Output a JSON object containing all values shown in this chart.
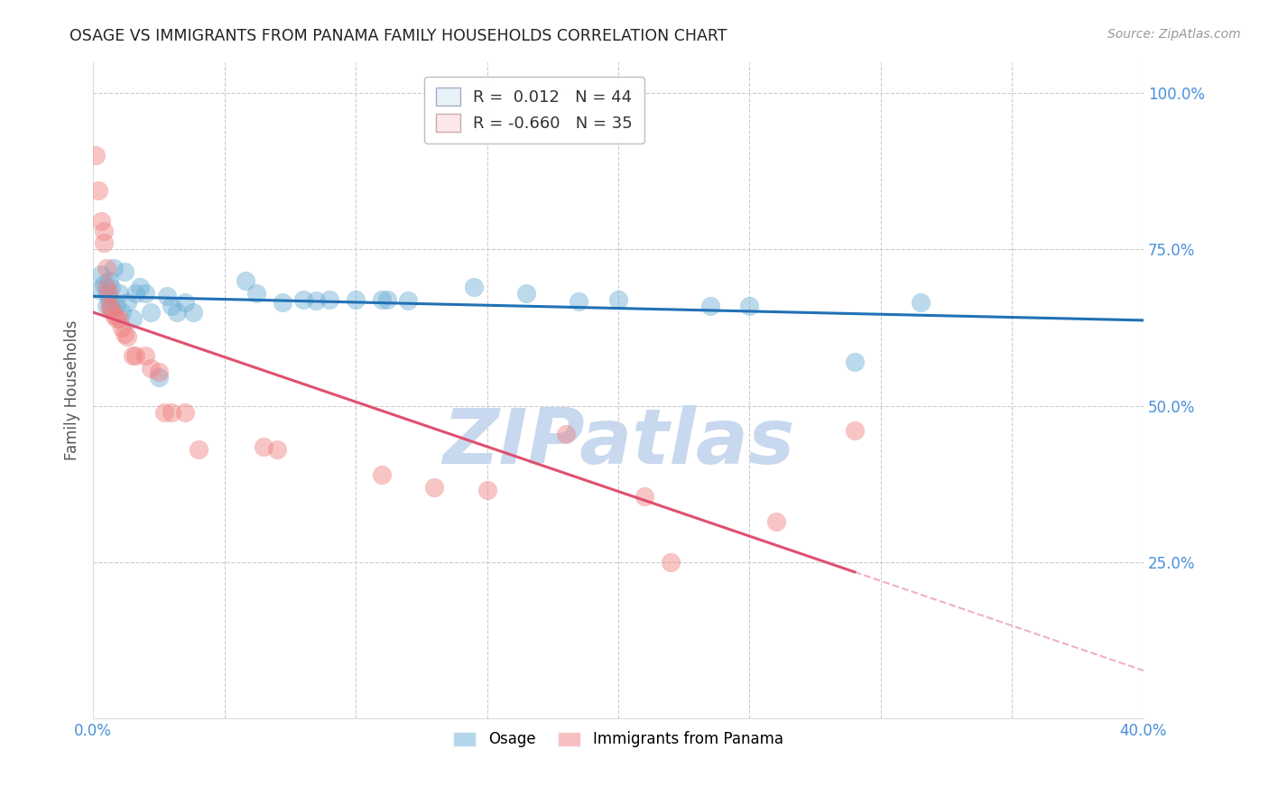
{
  "title": "OSAGE VS IMMIGRANTS FROM PANAMA FAMILY HOUSEHOLDS CORRELATION CHART",
  "source": "Source: ZipAtlas.com",
  "ylabel": "Family Households",
  "xlim": [
    0.0,
    0.4
  ],
  "ylim": [
    0.0,
    1.05
  ],
  "ytick_positions": [
    0.0,
    0.25,
    0.5,
    0.75,
    1.0
  ],
  "ytick_labels_right": [
    "",
    "25.0%",
    "50.0%",
    "75.0%",
    "100.0%"
  ],
  "xtick_positions": [
    0.0,
    0.05,
    0.1,
    0.15,
    0.2,
    0.25,
    0.3,
    0.35,
    0.4
  ],
  "xtick_labels": [
    "0.0%",
    "",
    "",
    "",
    "",
    "",
    "",
    "",
    "40.0%"
  ],
  "osage_R": 0.012,
  "osage_N": 44,
  "panama_R": -0.66,
  "panama_N": 35,
  "osage_color": "#6baed6",
  "panama_color": "#f08080",
  "osage_line_color": "#2171b5",
  "panama_line_color": "#e05070",
  "watermark_text": "ZIPatlas",
  "watermark_color": "#c8d8ee",
  "osage_points": [
    [
      0.002,
      0.685
    ],
    [
      0.003,
      0.71
    ],
    [
      0.004,
      0.695
    ],
    [
      0.005,
      0.68
    ],
    [
      0.005,
      0.66
    ],
    [
      0.006,
      0.7
    ],
    [
      0.006,
      0.67
    ],
    [
      0.007,
      0.69
    ],
    [
      0.007,
      0.655
    ],
    [
      0.008,
      0.72
    ],
    [
      0.009,
      0.66
    ],
    [
      0.01,
      0.68
    ],
    [
      0.011,
      0.65
    ],
    [
      0.012,
      0.715
    ],
    [
      0.013,
      0.665
    ],
    [
      0.015,
      0.64
    ],
    [
      0.016,
      0.68
    ],
    [
      0.018,
      0.69
    ],
    [
      0.02,
      0.68
    ],
    [
      0.022,
      0.65
    ],
    [
      0.025,
      0.545
    ],
    [
      0.028,
      0.675
    ],
    [
      0.03,
      0.66
    ],
    [
      0.032,
      0.65
    ],
    [
      0.035,
      0.665
    ],
    [
      0.038,
      0.65
    ],
    [
      0.058,
      0.7
    ],
    [
      0.062,
      0.68
    ],
    [
      0.072,
      0.665
    ],
    [
      0.08,
      0.67
    ],
    [
      0.085,
      0.668
    ],
    [
      0.09,
      0.67
    ],
    [
      0.1,
      0.67
    ],
    [
      0.11,
      0.67
    ],
    [
      0.112,
      0.67
    ],
    [
      0.12,
      0.668
    ],
    [
      0.145,
      0.69
    ],
    [
      0.165,
      0.68
    ],
    [
      0.185,
      0.667
    ],
    [
      0.2,
      0.67
    ],
    [
      0.235,
      0.66
    ],
    [
      0.25,
      0.66
    ],
    [
      0.29,
      0.57
    ],
    [
      0.315,
      0.665
    ]
  ],
  "panama_points": [
    [
      0.001,
      0.9
    ],
    [
      0.002,
      0.845
    ],
    [
      0.003,
      0.795
    ],
    [
      0.004,
      0.78
    ],
    [
      0.004,
      0.76
    ],
    [
      0.005,
      0.72
    ],
    [
      0.005,
      0.69
    ],
    [
      0.006,
      0.68
    ],
    [
      0.006,
      0.66
    ],
    [
      0.007,
      0.655
    ],
    [
      0.008,
      0.645
    ],
    [
      0.009,
      0.64
    ],
    [
      0.01,
      0.64
    ],
    [
      0.011,
      0.625
    ],
    [
      0.012,
      0.615
    ],
    [
      0.013,
      0.61
    ],
    [
      0.015,
      0.58
    ],
    [
      0.016,
      0.58
    ],
    [
      0.02,
      0.58
    ],
    [
      0.022,
      0.56
    ],
    [
      0.025,
      0.555
    ],
    [
      0.027,
      0.49
    ],
    [
      0.03,
      0.49
    ],
    [
      0.035,
      0.49
    ],
    [
      0.04,
      0.43
    ],
    [
      0.065,
      0.435
    ],
    [
      0.07,
      0.43
    ],
    [
      0.11,
      0.39
    ],
    [
      0.13,
      0.37
    ],
    [
      0.15,
      0.365
    ],
    [
      0.18,
      0.455
    ],
    [
      0.21,
      0.355
    ],
    [
      0.22,
      0.25
    ],
    [
      0.26,
      0.315
    ],
    [
      0.29,
      0.46
    ]
  ],
  "background_color": "#ffffff",
  "grid_color": "#cccccc",
  "legend_box_color": "#e8f0f8",
  "legend_box_color2": "#fce8ec"
}
